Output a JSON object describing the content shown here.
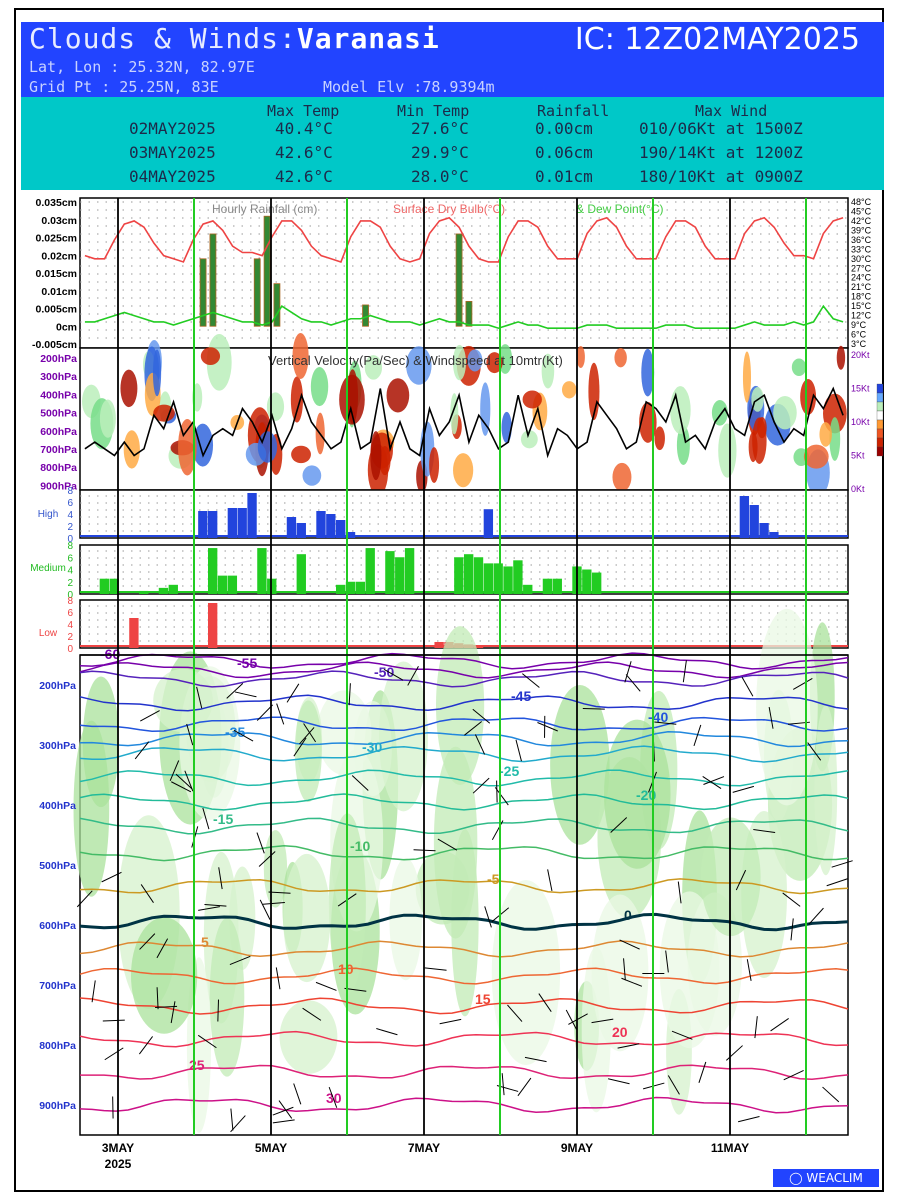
{
  "header": {
    "title_prefix": "Clouds & Winds:",
    "location": "Varanasi",
    "ic": "IC: 12Z02MAY2025",
    "latlon": "Lat, Lon : 25.32N, 82.97E",
    "gridpt": "Grid Pt  : 25.25N, 83E",
    "elevation": "Model Elv :78.9394m"
  },
  "summary": {
    "headers": [
      "Max Temp",
      "Min Temp",
      "Rainfall",
      "Max Wind"
    ],
    "rows": [
      {
        "date": "02MAY2025",
        "max": "40.4°C",
        "min": "27.6°C",
        "rain": "0.00cm",
        "wind": "010/06Kt at 1500Z"
      },
      {
        "date": "03MAY2025",
        "max": "42.6°C",
        "min": "29.9°C",
        "rain": "0.06cm",
        "wind": "190/14Kt at 1200Z"
      },
      {
        "date": "04MAY2025",
        "max": "42.6°C",
        "min": "28.0°C",
        "rain": "0.01cm",
        "wind": "180/10Kt at 0900Z"
      }
    ]
  },
  "colors": {
    "header_bg": "#2244ff",
    "table_bg": "#00c8c8",
    "temp": "#ee4444",
    "dew": "#22cc22",
    "rain": "#338833",
    "high": "#2244dd",
    "medium": "#22cc22",
    "low": "#ee4444",
    "day_line": "#22cc22"
  },
  "chart_data": [
    {
      "type": "line",
      "panel": "surface",
      "legend": [
        "Hourly Rainfall (cm)",
        "Surface Dry Bulb(°C)",
        "& Dew Point(°C)"
      ],
      "y_left_ticks": [
        "0.035cm",
        "0.03cm",
        "0.025cm",
        "0.02cm",
        "0.015cm",
        "0.01cm",
        "0.005cm",
        "0cm",
        "-0.005cm"
      ],
      "y_left_range": [
        -0.005,
        0.035
      ],
      "y_right_ticks": [
        "48°C",
        "45°C",
        "42°C",
        "39°C",
        "36°C",
        "33°C",
        "30°C",
        "27°C",
        "24°C",
        "21°C",
        "18°C",
        "15°C",
        "12°C",
        "9°C",
        "6°C",
        "3°C"
      ],
      "y_right_range": [
        3,
        48
      ],
      "temperature": [
        31,
        30,
        30,
        36,
        41,
        42,
        40,
        35,
        31,
        30,
        29,
        36,
        41,
        42,
        39,
        34,
        32,
        32,
        31,
        37,
        42,
        42,
        39,
        34,
        31,
        30,
        29,
        37,
        42,
        42,
        40,
        34,
        30,
        29,
        30,
        38,
        42,
        43,
        40,
        34,
        30,
        29,
        29,
        37,
        42,
        42,
        40,
        34,
        30,
        30,
        30,
        38,
        42,
        43,
        40,
        34,
        30,
        30,
        30,
        37,
        42,
        42,
        40,
        34,
        30,
        30,
        30,
        38,
        42,
        43,
        40,
        35,
        31,
        31,
        30,
        38,
        42,
        43
      ],
      "dewpoint": [
        10,
        10,
        11,
        12,
        13,
        12,
        11,
        10,
        10,
        9,
        10,
        11,
        12,
        13,
        12,
        11,
        10,
        10,
        9,
        10,
        15,
        13,
        11,
        10,
        10,
        9,
        10,
        11,
        11,
        12,
        11,
        10,
        10,
        10,
        9,
        10,
        11,
        10,
        10,
        9,
        9,
        9,
        8,
        9,
        10,
        9,
        9,
        8,
        8,
        8,
        8,
        9,
        9,
        9,
        8,
        8,
        8,
        8,
        8,
        9,
        9,
        9,
        8,
        8,
        8,
        8,
        8,
        9,
        10,
        9,
        9,
        9,
        10,
        9,
        10,
        15,
        11,
        10
      ],
      "rainfall": [
        {
          "t": 12.5,
          "v": 0.019
        },
        {
          "t": 13.5,
          "v": 0.026
        },
        {
          "t": 18.0,
          "v": 0.019
        },
        {
          "t": 19.0,
          "v": 0.031
        },
        {
          "t": 20.0,
          "v": 0.012
        },
        {
          "t": 29.0,
          "v": 0.006
        },
        {
          "t": 38.5,
          "v": 0.026
        },
        {
          "t": 39.5,
          "v": 0.007
        }
      ]
    },
    {
      "type": "heatmap",
      "panel": "vertical_velocity",
      "title": "Vertical Velocity(Pa/Sec) & Windspeed at 10mtr(Kt)",
      "y_ticks": [
        "200hPa",
        "300hPa",
        "400hPa",
        "500hPa",
        "600hPa",
        "700hPa",
        "800hPa",
        "900hPa"
      ],
      "y_right_ticks": [
        "20Kt",
        "15Kt",
        "10Kt",
        "5Kt",
        "0Kt"
      ],
      "windspeed_kt": [
        6,
        7,
        6,
        5,
        7,
        5,
        6,
        11,
        9,
        13,
        8,
        10,
        5,
        8,
        9,
        8,
        12,
        10,
        7,
        11,
        6,
        9,
        14,
        10,
        8,
        6,
        7,
        12,
        6,
        7,
        15,
        6,
        10,
        6,
        5,
        12,
        8,
        10,
        14,
        7,
        11,
        9,
        6,
        7,
        14,
        8,
        12,
        5,
        9,
        8,
        6,
        7,
        13,
        11,
        9,
        6,
        7,
        13,
        12,
        10,
        14,
        7,
        8,
        6,
        10,
        12,
        9,
        8,
        13,
        14,
        10,
        7,
        9,
        8,
        14,
        12,
        15,
        11
      ]
    },
    {
      "type": "bar",
      "panel": "high_cloud",
      "label": "High",
      "y_ticks": [
        "8",
        "6",
        "4",
        "2",
        "0"
      ],
      "y_range": [
        0,
        8
      ],
      "values": [
        0,
        0,
        0,
        0,
        0,
        0,
        0,
        0,
        0,
        0,
        0,
        0,
        4.5,
        4.5,
        0,
        5,
        5,
        7.5,
        0,
        0,
        0,
        3.5,
        2.5,
        0,
        4.5,
        4,
        3,
        1,
        0,
        0,
        0,
        0,
        0,
        0,
        0,
        0,
        0,
        0,
        0,
        0,
        0,
        4.8,
        0,
        0,
        0,
        0,
        0,
        0,
        0,
        0,
        0,
        0,
        0,
        0,
        0,
        0,
        0,
        0,
        0,
        0,
        0,
        0,
        0,
        0,
        0,
        0,
        0,
        7,
        5.5,
        2.5,
        1,
        0,
        0,
        0,
        0,
        0,
        0,
        0
      ]
    },
    {
      "type": "bar",
      "panel": "medium_cloud",
      "label": "Medium",
      "y_ticks": [
        "8",
        "6",
        "4",
        "2",
        "0"
      ],
      "y_range": [
        0,
        8
      ],
      "values": [
        0,
        0,
        2.5,
        2.5,
        0,
        0,
        0.5,
        0,
        1,
        1.5,
        0,
        0,
        0,
        7.5,
        3,
        3,
        0,
        0,
        7.5,
        2.5,
        0,
        0,
        6.5,
        0,
        0,
        0,
        1.5,
        2,
        2,
        7.5,
        0,
        7,
        6,
        7.5,
        0,
        0,
        0,
        0,
        6,
        6.5,
        6,
        5,
        5,
        4.5,
        5.5,
        1.5,
        0,
        2.5,
        2.5,
        0,
        4.5,
        4,
        3.5,
        0,
        0,
        0,
        0,
        0,
        0,
        0,
        0,
        0,
        0,
        0,
        0,
        0,
        0,
        0,
        0,
        0,
        0,
        0,
        0,
        0,
        0,
        0,
        0,
        0
      ]
    },
    {
      "type": "bar",
      "panel": "low_cloud",
      "label": "Low",
      "y_ticks": [
        "8",
        "6",
        "4",
        "2",
        "0"
      ],
      "y_range": [
        0,
        8
      ],
      "values": [
        0,
        0,
        0,
        0,
        0,
        5,
        0,
        0,
        0,
        0,
        0,
        0,
        0,
        7.5,
        0,
        0,
        0,
        0,
        0,
        0,
        0,
        0,
        0,
        0,
        0,
        0,
        0,
        0,
        0,
        0,
        0,
        0,
        0,
        0,
        0,
        0,
        1,
        1,
        0.8,
        0.6,
        0.4,
        0,
        0,
        0,
        0,
        0,
        0,
        0,
        0,
        0,
        0,
        0,
        0,
        0,
        0,
        0,
        0,
        0,
        0,
        0,
        0,
        0,
        0,
        0,
        0,
        0,
        0,
        0,
        0,
        0,
        0,
        0,
        0,
        0,
        0,
        0,
        0,
        0
      ]
    },
    {
      "type": "line",
      "panel": "profile",
      "y_ticks": [
        "200hPa",
        "300hPa",
        "400hPa",
        "500hPa",
        "600hPa",
        "700hPa",
        "800hPa",
        "900hPa"
      ],
      "y_range": [
        150,
        950
      ],
      "x_ticks": [
        "3MAY",
        "5MAY",
        "7MAY",
        "9MAY",
        "11MAY"
      ],
      "x_year": "2025",
      "isotherms": [
        {
          "label": "-60",
          "p": 160,
          "color": "#7700aa"
        },
        {
          "label": "-55",
          "p": 175,
          "color": "#7700aa"
        },
        {
          "label": "-50",
          "p": 190,
          "color": "#5522bb"
        },
        {
          "label": "-45",
          "p": 230,
          "color": "#2233cc"
        },
        {
          "label": "-40",
          "p": 265,
          "color": "#2255dd"
        },
        {
          "label": "-35",
          "p": 290,
          "color": "#2288dd"
        },
        {
          "label": "-30",
          "p": 315,
          "color": "#22aacc"
        },
        {
          "label": "-25",
          "p": 355,
          "color": "#22bbaa"
        },
        {
          "label": "-20",
          "p": 395,
          "color": "#22bb99"
        },
        {
          "label": "-15",
          "p": 435,
          "color": "#33bb88"
        },
        {
          "label": "-10",
          "p": 480,
          "color": "#44bb66"
        },
        {
          "label": "-5",
          "p": 535,
          "color": "#cc9922"
        },
        {
          "label": "0",
          "p": 595,
          "color": "#003344"
        },
        {
          "label": "5",
          "p": 640,
          "color": "#dd8833"
        },
        {
          "label": "10",
          "p": 685,
          "color": "#ee6633"
        },
        {
          "label": "15",
          "p": 735,
          "color": "#ee4433"
        },
        {
          "label": "20",
          "p": 790,
          "color": "#ee3355"
        },
        {
          "label": "25",
          "p": 845,
          "color": "#dd2277"
        },
        {
          "label": "30",
          "p": 900,
          "color": "#cc1188"
        }
      ]
    }
  ],
  "brand": "WEACLIM"
}
